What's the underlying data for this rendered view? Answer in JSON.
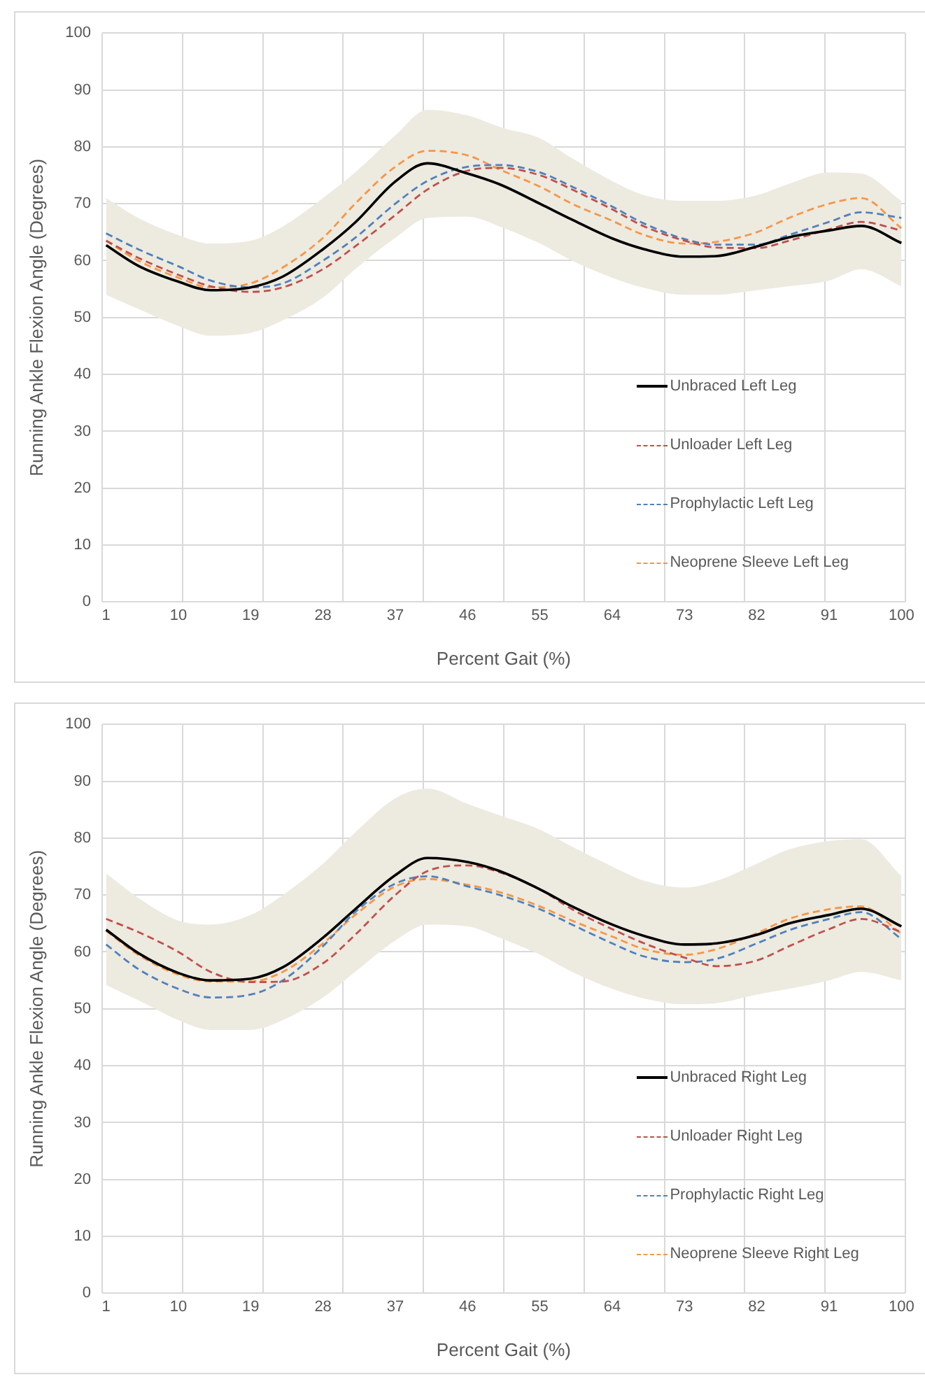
{
  "chart_data": [
    {
      "type": "line",
      "xlabel": "Percent Gait (%)",
      "ylabel": "Running Ankle Flexion Angle (Degrees)",
      "xlim": [
        0.5,
        100.5
      ],
      "xticks": [
        {
          "value": 0.5,
          "label": null
        },
        {
          "value": 1,
          "label": "1"
        },
        {
          "value": 10,
          "label": "10"
        },
        {
          "value": 10.5,
          "label": null
        },
        {
          "value": 19,
          "label": "19"
        },
        {
          "value": 20.5,
          "label": null
        },
        {
          "value": 28,
          "label": "28"
        },
        {
          "value": 30.5,
          "label": null
        },
        {
          "value": 37,
          "label": "37"
        },
        {
          "value": 40.5,
          "label": null
        },
        {
          "value": 46,
          "label": "46"
        },
        {
          "value": 50.5,
          "label": null
        },
        {
          "value": 55,
          "label": "55"
        },
        {
          "value": 60.5,
          "label": null
        },
        {
          "value": 64,
          "label": "64"
        },
        {
          "value": 70.5,
          "label": null
        },
        {
          "value": 73,
          "label": "73"
        },
        {
          "value": 80.5,
          "label": null
        },
        {
          "value": 82,
          "label": "82"
        },
        {
          "value": 90.5,
          "label": null
        },
        {
          "value": 91,
          "label": "91"
        },
        {
          "value": 100,
          "label": "100"
        },
        {
          "value": 100.5,
          "label": null
        }
      ],
      "ylim": [
        0,
        100
      ],
      "yticks": [
        0,
        10,
        20,
        30,
        40,
        50,
        60,
        70,
        80,
        90,
        100
      ],
      "grid": true,
      "legend": "bottom right",
      "x": [
        1,
        5,
        10,
        14,
        19,
        23,
        28,
        32,
        37,
        41,
        46,
        50,
        55,
        59,
        64,
        68,
        73,
        77,
        82,
        86,
        91,
        95,
        100
      ],
      "series": [
        {
          "name": "Unbraced Left Leg",
          "color": "#000000",
          "line_style": "solid",
          "values": [
            62.7,
            59.1,
            56.3,
            54.8,
            55.3,
            57.2,
            62,
            66.7,
            73.9,
            77.1,
            75.3,
            73.4,
            70,
            67.2,
            63.9,
            62,
            60.7,
            60.8,
            62.5,
            64.1,
            65.3,
            66.1,
            63.1
          ],
          "upper": [
            71,
            67.5,
            64.5,
            63,
            63.5,
            66,
            71,
            75.5,
            82,
            86.5,
            85.5,
            83.5,
            81.5,
            78,
            74,
            71.5,
            70.5,
            70.5,
            71.5,
            73.5,
            75.5,
            75.3,
            70.5
          ],
          "lower": [
            54,
            51.5,
            48.5,
            46.8,
            47.3,
            49.5,
            53.5,
            58.5,
            64,
            67.5,
            67.7,
            66,
            63,
            60,
            57,
            55.2,
            54,
            54,
            54.8,
            55.5,
            56.5,
            58.5,
            55.5
          ]
        },
        {
          "name": "Unloader Left Leg",
          "color": "#c0504d",
          "line_style": "dashed",
          "values": [
            63.5,
            60.5,
            57.5,
            55.5,
            54.5,
            55.3,
            58.5,
            62.5,
            68,
            72.5,
            75.8,
            76.3,
            75,
            72.5,
            69,
            66,
            63.5,
            62.3,
            62.2,
            63.5,
            65.5,
            66.8,
            65.3
          ]
        },
        {
          "name": "Prophylactic Left Leg",
          "color": "#4f81bd",
          "line_style": "dashed",
          "values": [
            64.8,
            62,
            59,
            56.5,
            55.3,
            56,
            60,
            64,
            70,
            74,
            76.5,
            76.8,
            75.5,
            73,
            69.5,
            66.5,
            63.8,
            62.8,
            62.8,
            64.5,
            66.8,
            68.5,
            67.5
          ]
        },
        {
          "name": "Neoprene Sleeve Left Leg",
          "color": "#f79646",
          "line_style": "dashed",
          "values": [
            63.5,
            60,
            57,
            55.3,
            56,
            58.8,
            64,
            70,
            76.5,
            79.3,
            78.5,
            76,
            73,
            70,
            67,
            64.5,
            63,
            63.3,
            65,
            67.5,
            70,
            71,
            65.7
          ]
        }
      ]
    },
    {
      "type": "line",
      "xlabel": "Percent Gait (%)",
      "ylabel": "Running Ankle Flexion Angle (Degrees)",
      "xlim": [
        0.5,
        100.5
      ],
      "xticks": [
        {
          "value": 0.5,
          "label": null
        },
        {
          "value": 1,
          "label": "1"
        },
        {
          "value": 10,
          "label": "10"
        },
        {
          "value": 10.5,
          "label": null
        },
        {
          "value": 19,
          "label": "19"
        },
        {
          "value": 20.5,
          "label": null
        },
        {
          "value": 28,
          "label": "28"
        },
        {
          "value": 30.5,
          "label": null
        },
        {
          "value": 37,
          "label": "37"
        },
        {
          "value": 40.5,
          "label": null
        },
        {
          "value": 46,
          "label": "46"
        },
        {
          "value": 50.5,
          "label": null
        },
        {
          "value": 55,
          "label": "55"
        },
        {
          "value": 60.5,
          "label": null
        },
        {
          "value": 64,
          "label": "64"
        },
        {
          "value": 70.5,
          "label": null
        },
        {
          "value": 73,
          "label": "73"
        },
        {
          "value": 80.5,
          "label": null
        },
        {
          "value": 82,
          "label": "82"
        },
        {
          "value": 90.5,
          "label": null
        },
        {
          "value": 91,
          "label": "91"
        },
        {
          "value": 100,
          "label": "100"
        },
        {
          "value": 100.5,
          "label": null
        }
      ],
      "ylim": [
        0,
        100
      ],
      "yticks": [
        0,
        10,
        20,
        30,
        40,
        50,
        60,
        70,
        80,
        90,
        100
      ],
      "grid": true,
      "legend": "bottom right",
      "x": [
        1,
        5,
        10,
        14,
        19,
        23,
        28,
        32,
        37,
        41,
        46,
        50,
        55,
        59,
        64,
        68,
        73,
        77,
        82,
        86,
        91,
        95,
        100
      ],
      "series": [
        {
          "name": "Unbraced Right Leg",
          "color": "#000000",
          "line_style": "solid",
          "values": [
            63.9,
            59.8,
            56.3,
            55,
            55.3,
            57.3,
            62.5,
            67.5,
            73.5,
            76.5,
            75.8,
            74.2,
            71,
            68,
            64.8,
            62.8,
            61.3,
            61.5,
            63,
            65,
            66.5,
            67.6,
            64.5
          ],
          "upper": [
            73.8,
            69.5,
            65.5,
            64.8,
            66.5,
            70,
            75.5,
            81,
            87,
            88.7,
            86,
            84,
            81.5,
            78.5,
            75,
            72.5,
            71.3,
            72.5,
            75.5,
            78,
            79.5,
            79.8,
            73.3
          ],
          "lower": [
            54.2,
            51.5,
            48,
            46.3,
            46.3,
            48,
            52,
            56.5,
            62,
            64.8,
            64.5,
            62.5,
            59.5,
            56.5,
            53.5,
            51.8,
            50.8,
            51,
            52.5,
            53.5,
            55,
            56.5,
            55
          ]
        },
        {
          "name": "Unloader Right Leg",
          "color": "#c0504d",
          "line_style": "dashed",
          "values": [
            65.8,
            63.5,
            60,
            56.5,
            54.7,
            54.8,
            58,
            63,
            70,
            74.2,
            75.2,
            74,
            71,
            67.5,
            64,
            61.5,
            59,
            57.5,
            58.5,
            61,
            64,
            65.8,
            63.5
          ]
        },
        {
          "name": "Prophylactic Right Leg",
          "color": "#4f81bd",
          "line_style": "dashed",
          "values": [
            61.3,
            57,
            53.5,
            52,
            52.5,
            55,
            61,
            67,
            72,
            73.3,
            71.5,
            70,
            67.5,
            64.8,
            61.5,
            59.2,
            58.2,
            58.8,
            61.5,
            63.8,
            65.8,
            67,
            62.3
          ]
        },
        {
          "name": "Neoprene Sleeve Right Leg",
          "color": "#f79646",
          "line_style": "dashed",
          "values": [
            63.7,
            59.5,
            56,
            54.8,
            54.8,
            56.5,
            61.5,
            66.5,
            71.5,
            72.8,
            71.8,
            70.5,
            68,
            65.5,
            62.7,
            60.5,
            59.5,
            60.5,
            63.3,
            65.8,
            67.5,
            68,
            63.2
          ]
        }
      ]
    }
  ]
}
